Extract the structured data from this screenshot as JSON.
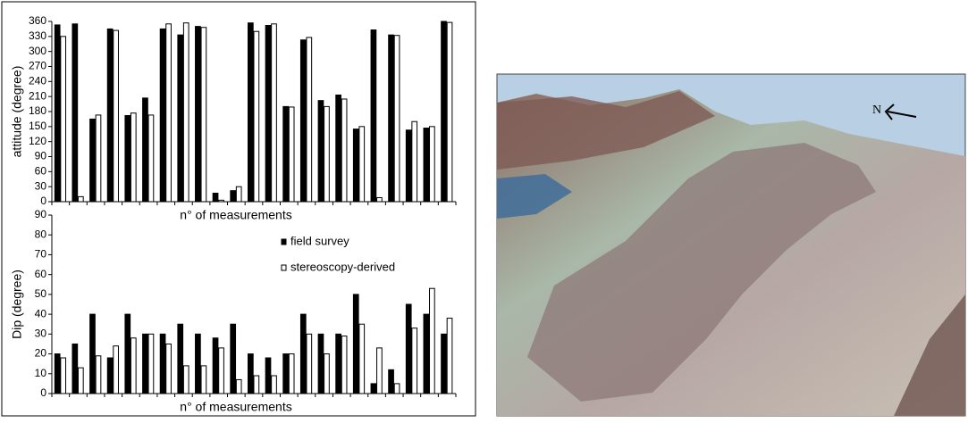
{
  "chart_data": [
    {
      "type": "bar",
      "ylabel": "attitude (degree)",
      "xlabel": "n° of measurements",
      "ylim": [
        0,
        360
      ],
      "yticks": [
        0,
        30,
        60,
        90,
        120,
        150,
        180,
        210,
        240,
        270,
        300,
        330,
        360
      ],
      "series": [
        {
          "color": "#000000",
          "values": [
            353,
            355,
            165,
            345,
            172,
            207,
            345,
            333,
            350,
            17,
            22,
            357,
            352,
            190,
            323,
            202,
            213,
            145,
            343,
            333,
            143,
            147,
            360
          ]
        },
        {
          "color": "#ffffff",
          "values": [
            330,
            10,
            173,
            342,
            177,
            173,
            355,
            357,
            348,
            3,
            30,
            340,
            355,
            189,
            328,
            190,
            205,
            150,
            8,
            332,
            160,
            150,
            358
          ]
        }
      ]
    },
    {
      "type": "bar",
      "ylabel": "Dip (degree)",
      "xlabel": "n° of measurements",
      "ylim": [
        0,
        90
      ],
      "yticks": [
        0,
        10,
        20,
        30,
        40,
        50,
        60,
        70,
        80,
        90
      ],
      "legend": "upper center",
      "series": [
        {
          "name": "field survey",
          "color": "#000000",
          "values": [
            20,
            25,
            40,
            18,
            40,
            30,
            30,
            35,
            30,
            28,
            35,
            20,
            18,
            20,
            40,
            30,
            30,
            50,
            5,
            12,
            45,
            40,
            30
          ]
        },
        {
          "name": "stereoscopy-derived",
          "color": "#ffffff",
          "values": [
            18,
            13,
            19,
            24,
            28,
            30,
            25,
            14,
            14,
            23,
            7,
            9,
            9,
            20,
            30,
            20,
            29,
            35,
            23,
            5,
            33,
            53,
            38
          ]
        }
      ]
    }
  ],
  "image": {
    "north_label": "N"
  }
}
